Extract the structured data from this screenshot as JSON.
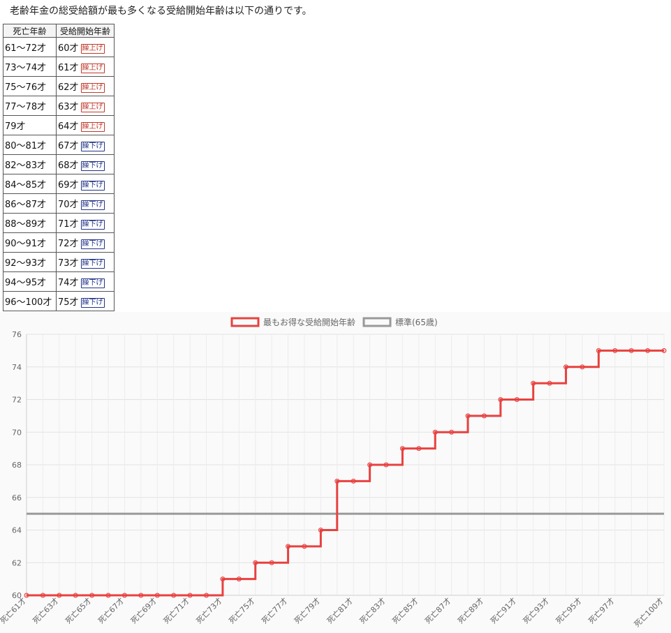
{
  "intro_text": "老齢年金の総受給額が最も多くなる受給開始年齢は以下の通りです。",
  "table": {
    "headers": [
      "死亡年齢",
      "受給開始年齢"
    ],
    "rows": [
      {
        "death_age": "61〜72才",
        "start_age": "60才",
        "badge": "繰上げ",
        "kind": "up"
      },
      {
        "death_age": "73〜74才",
        "start_age": "61才",
        "badge": "繰上げ",
        "kind": "up"
      },
      {
        "death_age": "75〜76才",
        "start_age": "62才",
        "badge": "繰上げ",
        "kind": "up"
      },
      {
        "death_age": "77〜78才",
        "start_age": "63才",
        "badge": "繰上げ",
        "kind": "up"
      },
      {
        "death_age": "79才",
        "start_age": "64才",
        "badge": "繰上げ",
        "kind": "up"
      },
      {
        "death_age": "80〜81才",
        "start_age": "67才",
        "badge": "繰下げ",
        "kind": "down"
      },
      {
        "death_age": "82〜83才",
        "start_age": "68才",
        "badge": "繰下げ",
        "kind": "down"
      },
      {
        "death_age": "84〜85才",
        "start_age": "69才",
        "badge": "繰下げ",
        "kind": "down"
      },
      {
        "death_age": "86〜87才",
        "start_age": "70才",
        "badge": "繰下げ",
        "kind": "down"
      },
      {
        "death_age": "88〜89才",
        "start_age": "71才",
        "badge": "繰下げ",
        "kind": "down"
      },
      {
        "death_age": "90〜91才",
        "start_age": "72才",
        "badge": "繰下げ",
        "kind": "down"
      },
      {
        "death_age": "92〜93才",
        "start_age": "73才",
        "badge": "繰下げ",
        "kind": "down"
      },
      {
        "death_age": "94〜95才",
        "start_age": "74才",
        "badge": "繰下げ",
        "kind": "down"
      },
      {
        "death_age": "96〜100才",
        "start_age": "75才",
        "badge": "繰下げ",
        "kind": "down"
      }
    ]
  },
  "chart_data": {
    "type": "line",
    "step": true,
    "x": [
      "死亡61才",
      "死亡62才",
      "死亡63才",
      "死亡64才",
      "死亡65才",
      "死亡66才",
      "死亡67才",
      "死亡68才",
      "死亡69才",
      "死亡70才",
      "死亡71才",
      "死亡72才",
      "死亡73才",
      "死亡74才",
      "死亡75才",
      "死亡76才",
      "死亡77才",
      "死亡78才",
      "死亡79才",
      "死亡80才",
      "死亡81才",
      "死亡82才",
      "死亡83才",
      "死亡84才",
      "死亡85才",
      "死亡86才",
      "死亡87才",
      "死亡88才",
      "死亡89才",
      "死亡90才",
      "死亡91才",
      "死亡92才",
      "死亡93才",
      "死亡94才",
      "死亡95才",
      "死亡96才",
      "死亡97才",
      "死亡98才",
      "死亡99才",
      "死亡100才"
    ],
    "x_ticks_shown": [
      "死亡61才",
      "死亡63才",
      "死亡65才",
      "死亡67才",
      "死亡69才",
      "死亡71才",
      "死亡73才",
      "死亡75才",
      "死亡77才",
      "死亡79才",
      "死亡81才",
      "死亡83才",
      "死亡85才",
      "死亡87才",
      "死亡89才",
      "死亡91才",
      "死亡93才",
      "死亡95才",
      "死亡97才",
      "死亡100才"
    ],
    "series": [
      {
        "name": "最もお得な受給開始年齢",
        "color": "#e8413f",
        "values": [
          60,
          60,
          60,
          60,
          60,
          60,
          60,
          60,
          60,
          60,
          60,
          60,
          61,
          61,
          62,
          62,
          63,
          63,
          64,
          67,
          67,
          68,
          68,
          69,
          69,
          70,
          70,
          71,
          71,
          72,
          72,
          73,
          73,
          74,
          74,
          75,
          75,
          75,
          75,
          75
        ]
      },
      {
        "name": "標準(65歳)",
        "color": "#999999",
        "values": [
          65,
          65,
          65,
          65,
          65,
          65,
          65,
          65,
          65,
          65,
          65,
          65,
          65,
          65,
          65,
          65,
          65,
          65,
          65,
          65,
          65,
          65,
          65,
          65,
          65,
          65,
          65,
          65,
          65,
          65,
          65,
          65,
          65,
          65,
          65,
          65,
          65,
          65,
          65,
          65
        ]
      }
    ],
    "ylim": [
      60,
      76
    ],
    "y_ticks": [
      60,
      62,
      64,
      66,
      68,
      70,
      72,
      74,
      76
    ],
    "grid": true,
    "legend": "top-center"
  }
}
